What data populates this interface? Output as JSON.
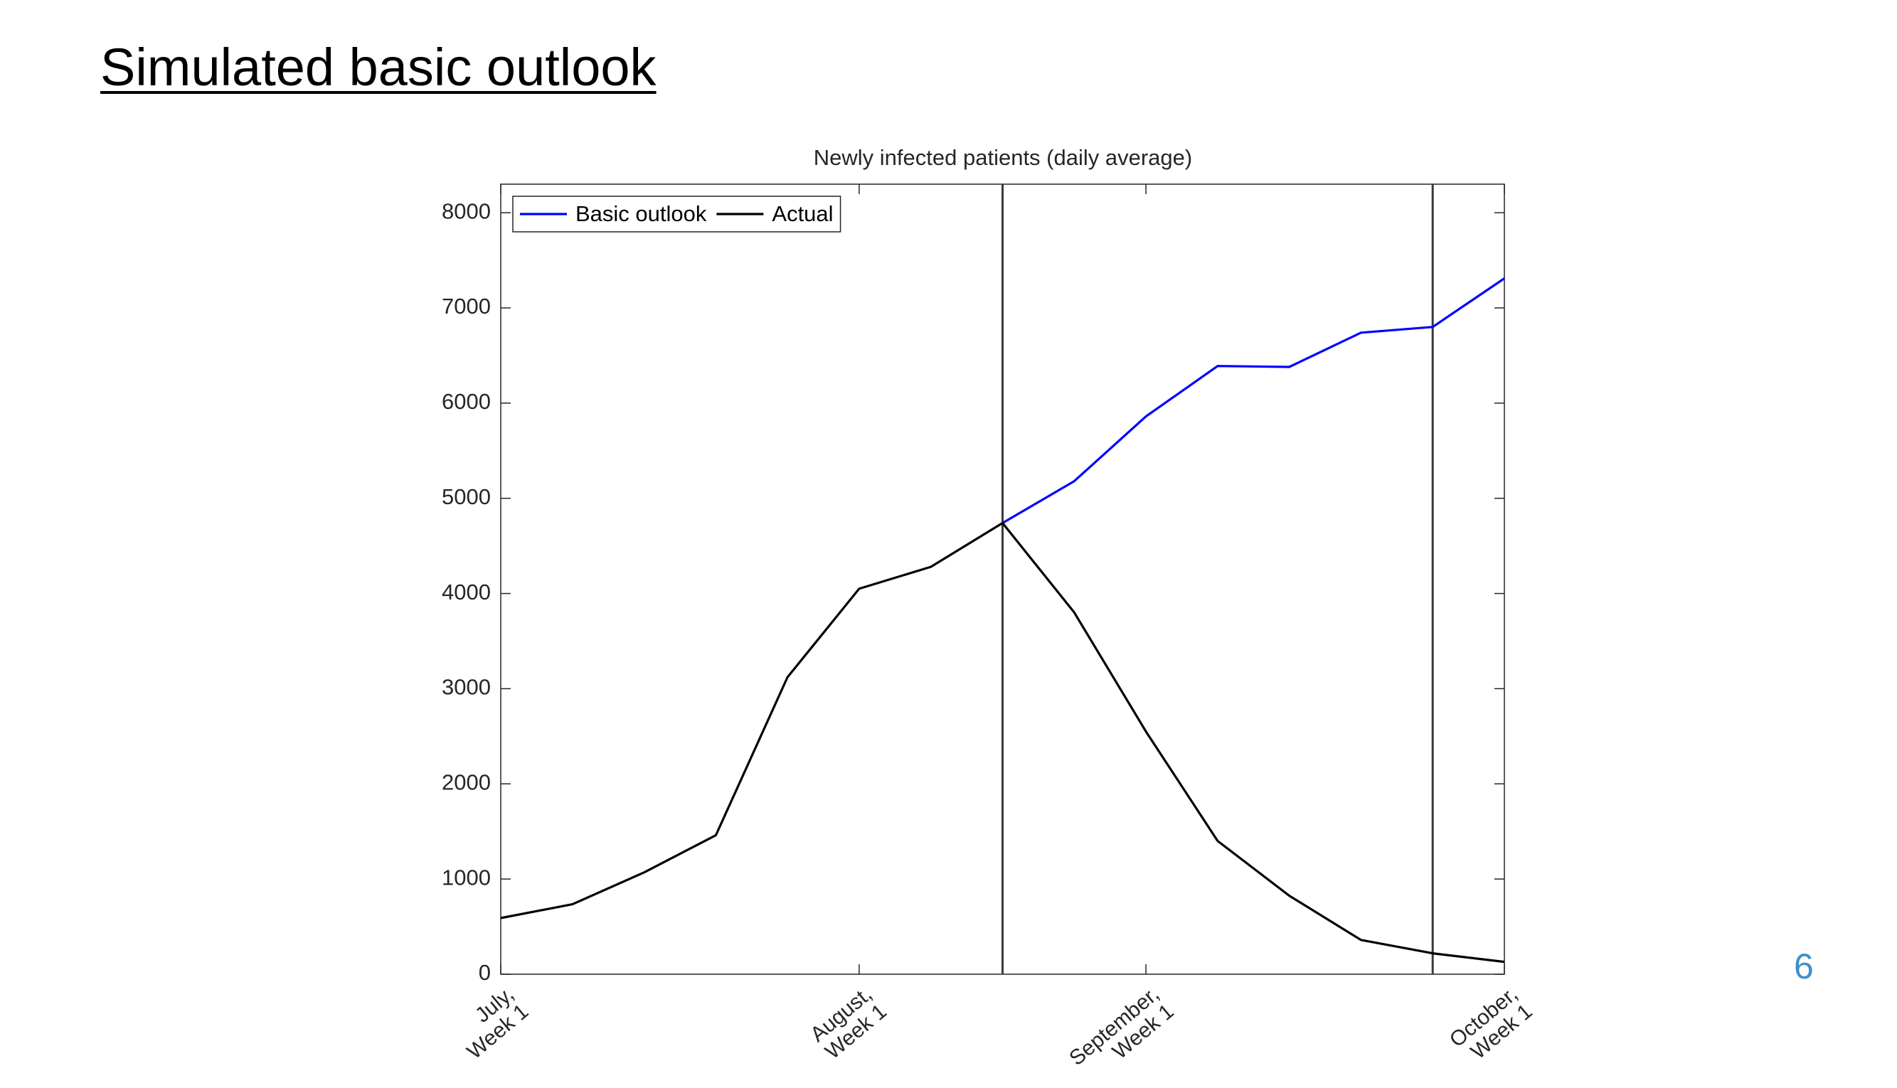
{
  "page_title": "Simulated basic outlook",
  "page_number": "6",
  "chart_data": {
    "type": "line",
    "title": "Newly infected patients (daily average)",
    "categories": [
      "July,\nWeek 1",
      null,
      null,
      null,
      null,
      "August,\nWeek 1",
      null,
      null,
      null,
      "September,\nWeek 1",
      null,
      null,
      null,
      null,
      "October,\nWeek 1"
    ],
    "series": [
      {
        "name": "Basic outlook",
        "color": "#0000ff",
        "values": [
          null,
          null,
          null,
          null,
          null,
          null,
          null,
          4740,
          5180,
          5860,
          6390,
          6380,
          6740,
          6800,
          7310
        ]
      },
      {
        "name": "Actual",
        "color": "#000000",
        "values": [
          590,
          735,
          1070,
          1460,
          3120,
          4050,
          4280,
          4740,
          3800,
          2550,
          1400,
          825,
          360,
          220,
          130
        ]
      }
    ],
    "vertical_lines": [
      7,
      13
    ],
    "ylim": [
      0,
      8300
    ],
    "yticks": [
      0,
      1000,
      2000,
      3000,
      4000,
      5000,
      6000,
      7000,
      8000
    ],
    "legend": "upper left",
    "grid": false
  }
}
